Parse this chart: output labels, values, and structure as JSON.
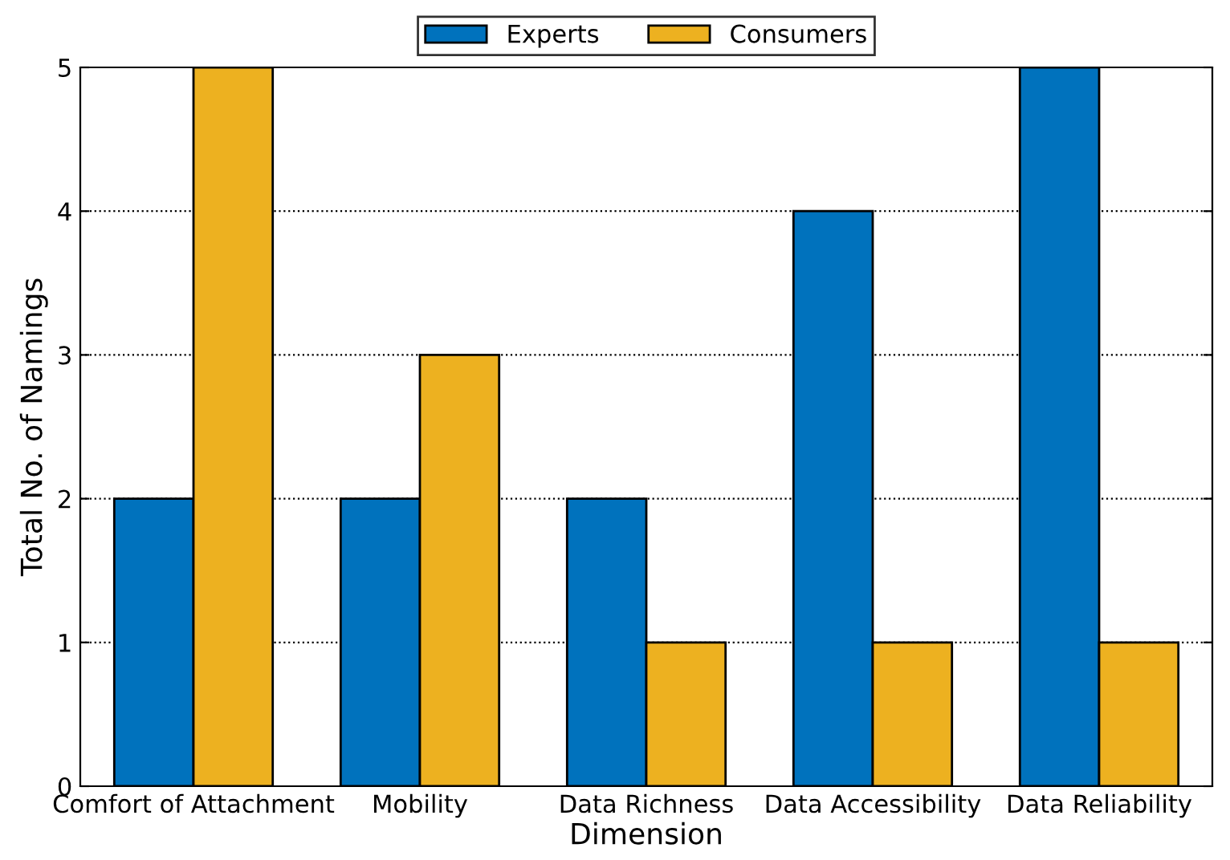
{
  "chart_data": {
    "type": "bar",
    "xlabel": "Dimension",
    "ylabel": "Total No. of Namings",
    "categories": [
      "Comfort of Attachment",
      "Mobility",
      "Data Richness",
      "Data Accessibility",
      "Data Reliability"
    ],
    "series": [
      {
        "name": "Experts",
        "color": "#0072bd",
        "values": [
          2,
          2,
          2,
          4,
          5
        ]
      },
      {
        "name": "Consumers",
        "color": "#edb120",
        "values": [
          5,
          3,
          1,
          1,
          1
        ]
      }
    ],
    "ylim": [
      0,
      5
    ],
    "yticks": [
      0,
      1,
      2,
      3,
      4,
      5
    ],
    "grid": "y",
    "legend": "top"
  }
}
